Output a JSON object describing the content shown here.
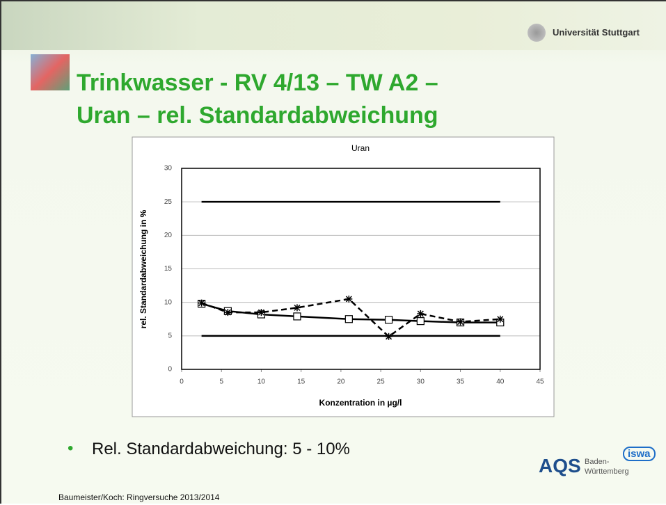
{
  "slide": {
    "university": "Universität Stuttgart",
    "title_line1": "Trinkwasser - RV 4/13 – TW A2 –",
    "title_line2": "Uran – rel. Standardabweichung",
    "bullet": "Rel. Standardabweichung: 5 - 10%",
    "footer": "Baumeister/Koch: Ringversuche 2013/2014",
    "logo": {
      "aqs": "AQS",
      "baden": "Baden-",
      "wuerttemberg": "Württemberg",
      "iswa": "iswa"
    }
  },
  "chart_data": {
    "type": "line",
    "title": "Uran",
    "x_label": "Konzentration in µg/l",
    "y_label": "rel. Standardabweichung in %",
    "xlim": [
      0,
      45
    ],
    "xticks": [
      0,
      5,
      10,
      15,
      20,
      25,
      30,
      35,
      40,
      45
    ],
    "ylim": [
      0,
      30
    ],
    "yticks": [
      0,
      5,
      10,
      15,
      20,
      25,
      30
    ],
    "grid": true,
    "series": [
      {
        "color": "#000000",
        "marker": "square",
        "dash": false,
        "x": [
          2.5,
          5.8,
          10,
          14.5,
          21,
          26,
          30,
          35,
          40
        ],
        "values": [
          9.8,
          8.7,
          8.2,
          7.9,
          7.5,
          7.4,
          7.2,
          7.0,
          7.0
        ]
      },
      {
        "color": "#000000",
        "marker": "star",
        "dash": true,
        "x": [
          2.5,
          5.8,
          10,
          14.5,
          21,
          26,
          30,
          35,
          40
        ],
        "values": [
          9.9,
          8.5,
          8.5,
          9.2,
          10.5,
          4.9,
          8.3,
          7.1,
          7.5
        ]
      },
      {
        "color": "#000000",
        "marker": "none",
        "dash": false,
        "x": [
          2.5,
          40
        ],
        "values": [
          25,
          25
        ]
      },
      {
        "color": "#000000",
        "marker": "none",
        "dash": false,
        "x": [
          2.5,
          40
        ],
        "values": [
          5,
          5
        ]
      }
    ]
  }
}
